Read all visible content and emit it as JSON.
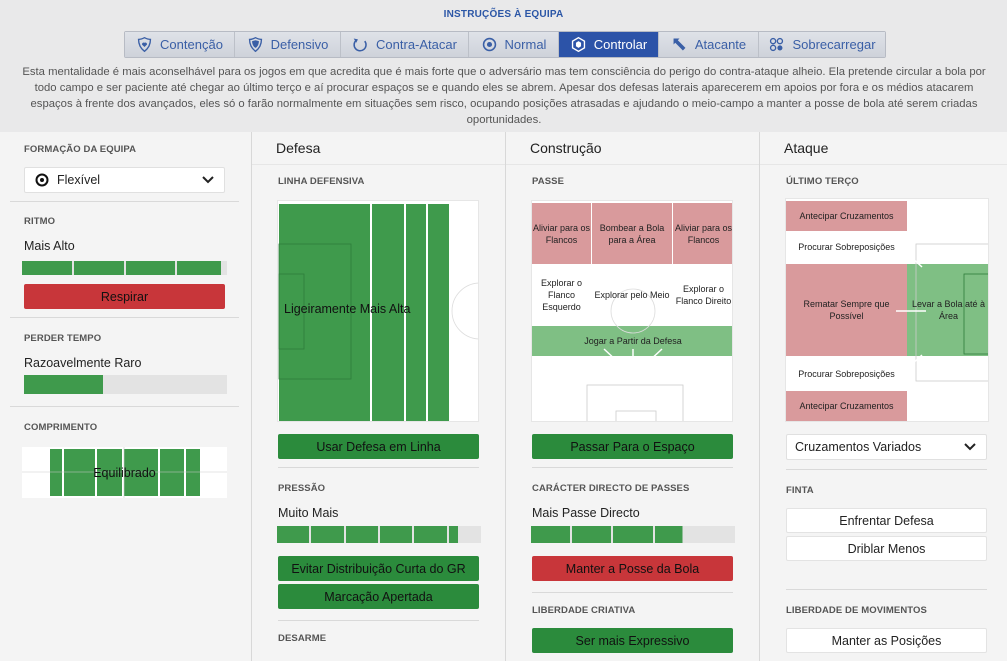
{
  "header": {
    "title": "INSTRUÇÕES À EQUIPA"
  },
  "tabs": [
    {
      "label": "Contenção",
      "icon": "shield-heart-icon"
    },
    {
      "label": "Defensivo",
      "icon": "shield-icon"
    },
    {
      "label": "Contra-Atacar",
      "icon": "counter-arrow-icon"
    },
    {
      "label": "Normal",
      "icon": "balance-icon"
    },
    {
      "label": "Controlar",
      "icon": "cube-icon",
      "active": true
    },
    {
      "label": "Atacante",
      "icon": "attack-arrow-icon"
    },
    {
      "label": "Sobrecarregar",
      "icon": "overload-icon"
    }
  ],
  "description": "Esta mentalidade é mais aconselhável para os jogos em que acredita que é mais forte que o adversário mas tem consciência do perigo do contra-ataque alheio. Ela pretende circular a bola por todo campo e ser paciente até chegar ao último terço e aí procurar espaços se e quando eles se abrem. Apesar dos defesas laterais aparecerem em apoios por fora e os médios atacarem espaços à frente dos avançados, eles só o farão normalmente em situações sem risco, ocupando posições atrasadas e ajudando o meio-campo a manter a posse de bola até serem criadas oportunidades.",
  "left": {
    "formation_label": "FORMAÇÃO DA EQUIPA",
    "formation_value": "Flexível",
    "tempo_label": "RITMO",
    "tempo_value": "Mais Alto",
    "tempo_level": 0.97,
    "tempo_button": "Respirar",
    "timewasting_label": "PERDER TEMPO",
    "timewasting_value": "Razoavelmente Raro",
    "timewasting_level": 0.39,
    "width_label": "COMPRIMENTO",
    "width_value": "Equilibrado"
  },
  "defence": {
    "title": "Defesa",
    "line_label": "LINHA DEFENSIVA",
    "line_value": "Ligeiramente Mais Alta",
    "line_button": "Usar Defesa em Linha",
    "press_label": "PRESSÃO",
    "press_value": "Muito Mais",
    "press_level": 0.88,
    "press_buttons": [
      "Evitar Distribuição Curta do GR",
      "Marcação Apertada"
    ],
    "tackling_label": "DESARME"
  },
  "buildup": {
    "title": "Construção",
    "passing_label": "PASSE",
    "zones_top": [
      "Aliviar para os Flancos",
      "Bombear a Bola para a Área",
      "Aliviar para os Flancos"
    ],
    "zones_mid": [
      "Explorar o Flanco Esquerdo",
      "Explorar pelo Meio",
      "Explorar o Flanco Direito"
    ],
    "zone_bottom": "Jogar a Partir da Defesa",
    "pass_button": "Passar Para o Espaço",
    "directness_label": "CARÁCTER DIRECTO DE PASSES",
    "directness_value": "Mais Passe Directo",
    "directness_level": 0.74,
    "directness_button": "Manter a Posse da Bola",
    "creative_label": "LIBERDADE CRIATIVA",
    "creative_button": "Ser mais Expressivo"
  },
  "attack": {
    "title": "Ataque",
    "final_third_label": "ÚLTIMO TERÇO",
    "zones": {
      "early_top": "Antecipar Cruzamentos",
      "overlap_top": "Procurar Sobreposições",
      "shoot": "Rematar Sempre que Possível",
      "work_box": "Levar a Bola até à Área",
      "overlap_bottom": "Procurar Sobreposições",
      "early_bottom": "Antecipar Cruzamentos"
    },
    "crossing_value": "Cruzamentos Variados",
    "dribble_label": "FINTA",
    "dribble_buttons": [
      "Enfrentar Defesa",
      "Driblar Menos"
    ],
    "movement_label": "LIBERDADE DE MOVIMENTOS",
    "movement_button": "Manter as Posições"
  },
  "colors": {
    "accent": "#2c53a8",
    "green": "#2b8b3c",
    "red": "#c8363a",
    "pitch_green": "#3f9a4c",
    "pitch_red": "#d99a9c"
  }
}
